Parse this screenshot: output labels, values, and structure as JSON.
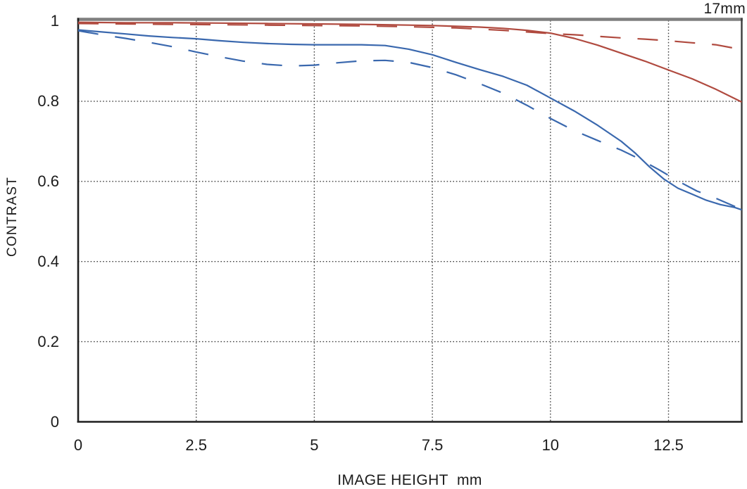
{
  "page": {
    "background_color": "#ffffff",
    "text_color": "#1c1c1c"
  },
  "chart": {
    "focal_length": "17mm",
    "ylabel": "CONTRAST",
    "xlabel": "IMAGE HEIGHT  mm"
  },
  "chart_data": {
    "type": "line",
    "title": "17mm",
    "xlabel": "IMAGE HEIGHT  mm",
    "ylabel": "CONTRAST",
    "xlim": [
      0,
      14.05
    ],
    "ylim": [
      0,
      1
    ],
    "x_ticks": [
      0,
      2.5,
      5,
      7.5,
      10,
      12.5
    ],
    "x_tick_labels": [
      "0",
      "2.5",
      "5",
      "7.5",
      "10",
      "12.5"
    ],
    "y_ticks": [
      0,
      0.2,
      0.4,
      0.6,
      0.8,
      1
    ],
    "y_tick_labels": [
      "0",
      "0.2",
      "0.4",
      "0.6",
      "0.8",
      "1"
    ],
    "grid": "dotted interior gridlines at ticks",
    "legend": "none",
    "colors": {
      "red": "#b04a3f",
      "blue": "#3a68ae",
      "grid": "#3f3f3f",
      "border_top": "#7f7f7f",
      "border_right": "#3c3c3c",
      "axis": "#1f1f1f"
    },
    "series": [
      {
        "name": "red-solid",
        "color": "#b04a3f",
        "style": "solid",
        "points": [
          [
            0,
            0.997
          ],
          [
            1,
            0.996
          ],
          [
            2,
            0.996
          ],
          [
            3,
            0.995
          ],
          [
            4,
            0.994
          ],
          [
            5,
            0.993
          ],
          [
            6,
            0.992
          ],
          [
            7,
            0.99
          ],
          [
            7.5,
            0.989
          ],
          [
            8,
            0.987
          ],
          [
            8.5,
            0.985
          ],
          [
            9,
            0.982
          ],
          [
            9.5,
            0.977
          ],
          [
            10,
            0.97
          ],
          [
            10.5,
            0.957
          ],
          [
            11,
            0.94
          ],
          [
            11.5,
            0.92
          ],
          [
            12,
            0.9
          ],
          [
            12.5,
            0.878
          ],
          [
            13,
            0.856
          ],
          [
            13.5,
            0.83
          ],
          [
            14.05,
            0.798
          ]
        ]
      },
      {
        "name": "red-dashed",
        "color": "#b04a3f",
        "style": "dashed",
        "points": [
          [
            0,
            0.994
          ],
          [
            1,
            0.993
          ],
          [
            2,
            0.992
          ],
          [
            3,
            0.991
          ],
          [
            4,
            0.99
          ],
          [
            5,
            0.989
          ],
          [
            6,
            0.988
          ],
          [
            7,
            0.986
          ],
          [
            8,
            0.983
          ],
          [
            9,
            0.977
          ],
          [
            9.5,
            0.973
          ],
          [
            10,
            0.969
          ],
          [
            10.5,
            0.966
          ],
          [
            11,
            0.962
          ],
          [
            11.5,
            0.958
          ],
          [
            12,
            0.955
          ],
          [
            12.5,
            0.951
          ],
          [
            13,
            0.946
          ],
          [
            13.5,
            0.941
          ],
          [
            14.05,
            0.929
          ]
        ]
      },
      {
        "name": "blue-solid",
        "color": "#3a68ae",
        "style": "solid",
        "points": [
          [
            0,
            0.978
          ],
          [
            0.5,
            0.973
          ],
          [
            1,
            0.968
          ],
          [
            1.5,
            0.963
          ],
          [
            2,
            0.959
          ],
          [
            2.5,
            0.956
          ],
          [
            3,
            0.951
          ],
          [
            3.5,
            0.947
          ],
          [
            4,
            0.944
          ],
          [
            4.5,
            0.942
          ],
          [
            5,
            0.941
          ],
          [
            5.5,
            0.941
          ],
          [
            6,
            0.941
          ],
          [
            6.5,
            0.939
          ],
          [
            7,
            0.93
          ],
          [
            7.5,
            0.916
          ],
          [
            8,
            0.897
          ],
          [
            8.5,
            0.879
          ],
          [
            9,
            0.862
          ],
          [
            9.5,
            0.84
          ],
          [
            10,
            0.808
          ],
          [
            10.5,
            0.776
          ],
          [
            11,
            0.74
          ],
          [
            11.5,
            0.7
          ],
          [
            11.8,
            0.67
          ],
          [
            12.1,
            0.636
          ],
          [
            12.4,
            0.606
          ],
          [
            12.7,
            0.583
          ],
          [
            13,
            0.568
          ],
          [
            13.3,
            0.553
          ],
          [
            13.6,
            0.542
          ],
          [
            13.9,
            0.535
          ],
          [
            14.05,
            0.529
          ]
        ]
      },
      {
        "name": "blue-dashed",
        "color": "#3a68ae",
        "style": "dashed",
        "points": [
          [
            0,
            0.976
          ],
          [
            0.5,
            0.966
          ],
          [
            1,
            0.957
          ],
          [
            1.5,
            0.947
          ],
          [
            2,
            0.936
          ],
          [
            2.5,
            0.923
          ],
          [
            3,
            0.911
          ],
          [
            3.5,
            0.9
          ],
          [
            4,
            0.892
          ],
          [
            4.5,
            0.888
          ],
          [
            5,
            0.89
          ],
          [
            5.5,
            0.896
          ],
          [
            6,
            0.901
          ],
          [
            6.5,
            0.902
          ],
          [
            7,
            0.897
          ],
          [
            7.5,
            0.884
          ],
          [
            8,
            0.866
          ],
          [
            8.5,
            0.844
          ],
          [
            9,
            0.82
          ],
          [
            9.5,
            0.79
          ],
          [
            10,
            0.757
          ],
          [
            10.5,
            0.727
          ],
          [
            11,
            0.702
          ],
          [
            11.5,
            0.678
          ],
          [
            11.8,
            0.661
          ],
          [
            12.3,
            0.629
          ],
          [
            12.7,
            0.601
          ],
          [
            13.1,
            0.576
          ],
          [
            13.5,
            0.558
          ],
          [
            14.05,
            0.53
          ]
        ]
      }
    ]
  }
}
